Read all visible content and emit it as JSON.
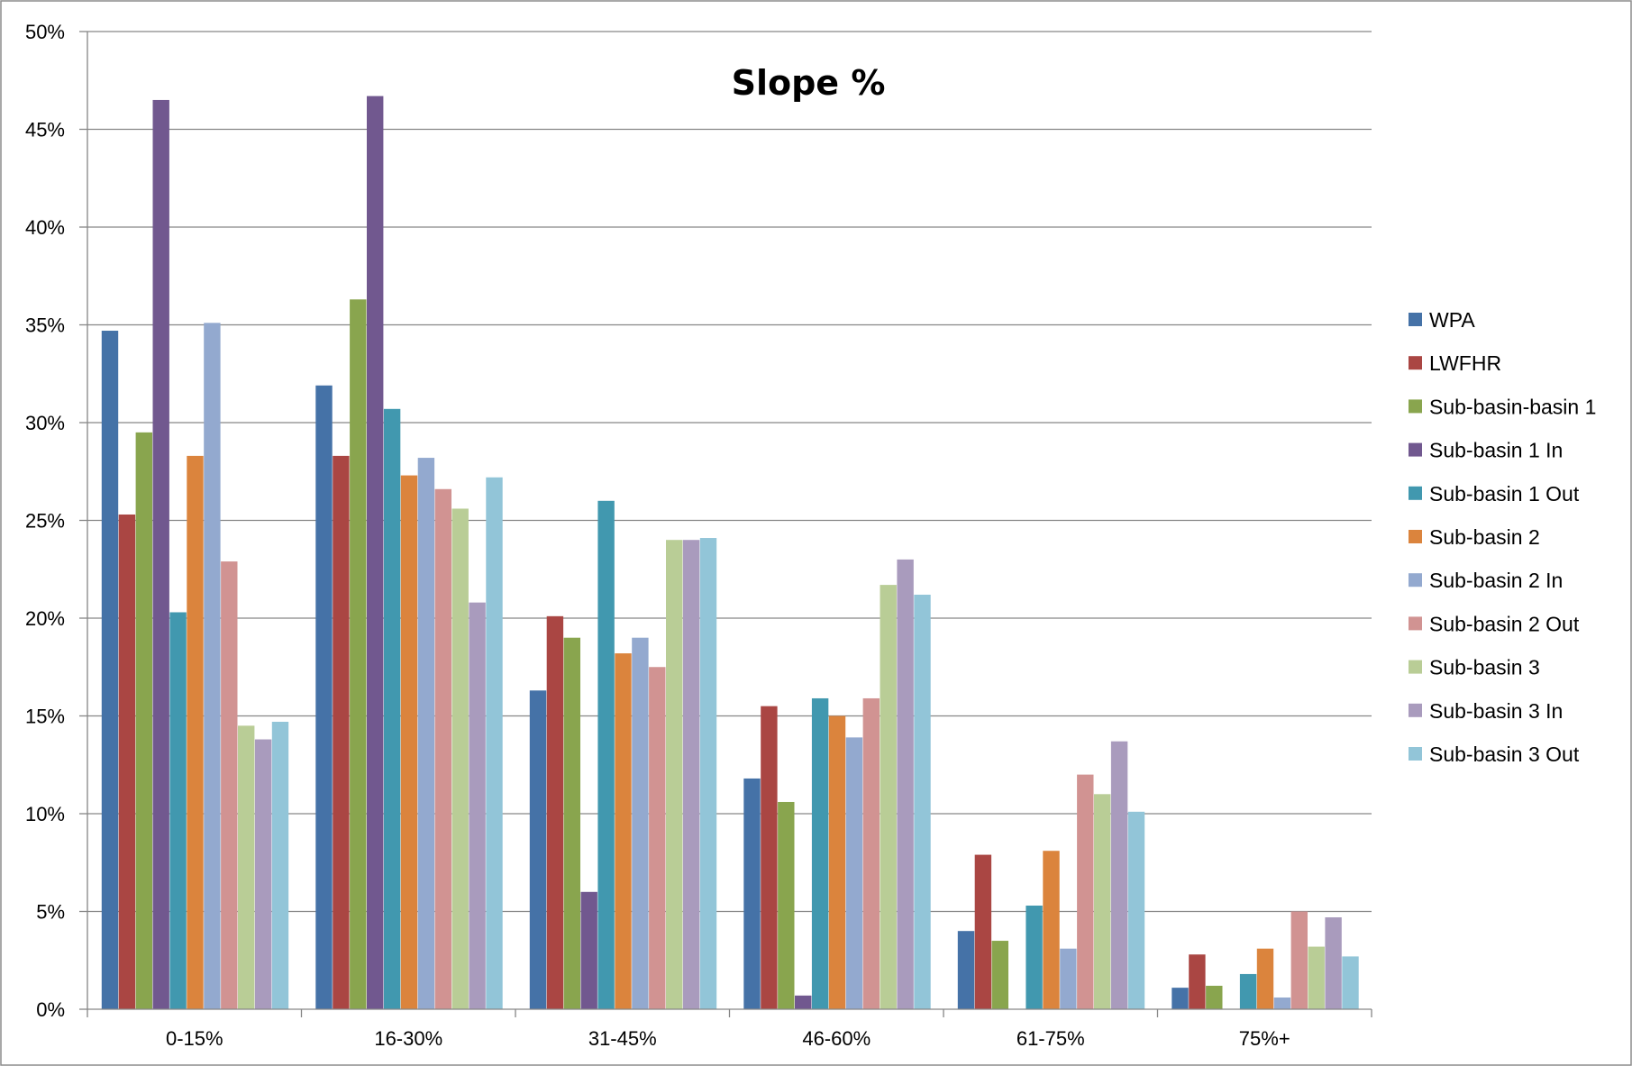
{
  "chart_data": {
    "type": "bar",
    "title": "Slope %",
    "xlabel": "",
    "ylabel": "",
    "ylim": [
      0,
      50
    ],
    "y_ticks": [
      0,
      5,
      10,
      15,
      20,
      25,
      30,
      35,
      40,
      45,
      50
    ],
    "y_tick_labels": [
      "0%",
      "5%",
      "10%",
      "15%",
      "20%",
      "25%",
      "30%",
      "35%",
      "40%",
      "45%",
      "50%"
    ],
    "grid": true,
    "legend_position": "right",
    "categories": [
      "0-15%",
      "16-30%",
      "31-45%",
      "46-60%",
      "61-75%",
      "75%+"
    ],
    "series": [
      {
        "name": "WPA",
        "color": "#4572A7",
        "values": [
          34.7,
          31.9,
          16.3,
          11.8,
          4.0,
          1.1
        ]
      },
      {
        "name": "LWFHR",
        "color": "#AA4643",
        "values": [
          25.3,
          28.3,
          20.1,
          15.5,
          7.9,
          2.8
        ]
      },
      {
        "name": "Sub-basin-basin 1",
        "color": "#89A54E",
        "values": [
          29.5,
          36.3,
          19.0,
          10.6,
          3.5,
          1.2
        ]
      },
      {
        "name": "Sub-basin 1 In",
        "color": "#71588F",
        "values": [
          46.5,
          46.7,
          6.0,
          0.7,
          0.0,
          0.0
        ]
      },
      {
        "name": "Sub-basin 1 Out",
        "color": "#4198AF",
        "values": [
          20.3,
          30.7,
          26.0,
          15.9,
          5.3,
          1.8
        ]
      },
      {
        "name": "Sub-basin 2",
        "color": "#DB843D",
        "values": [
          28.3,
          27.3,
          18.2,
          15.0,
          8.1,
          3.1
        ]
      },
      {
        "name": "Sub-basin 2 In",
        "color": "#93A9CF",
        "values": [
          35.1,
          28.2,
          19.0,
          13.9,
          3.1,
          0.6
        ]
      },
      {
        "name": "Sub-basin 2 Out",
        "color": "#D19392",
        "values": [
          22.9,
          26.6,
          17.5,
          15.9,
          12.0,
          5.0
        ]
      },
      {
        "name": "Sub-basin 3",
        "color": "#B9CD96",
        "values": [
          14.5,
          25.6,
          24.0,
          21.7,
          11.0,
          3.2
        ]
      },
      {
        "name": "Sub-basin 3 In",
        "color": "#A99BBD",
        "values": [
          13.8,
          20.8,
          24.0,
          23.0,
          13.7,
          4.7
        ]
      },
      {
        "name": "Sub-basin 3 Out",
        "color": "#92C5D8",
        "values": [
          14.7,
          27.2,
          24.1,
          21.2,
          10.1,
          2.7
        ]
      }
    ]
  }
}
